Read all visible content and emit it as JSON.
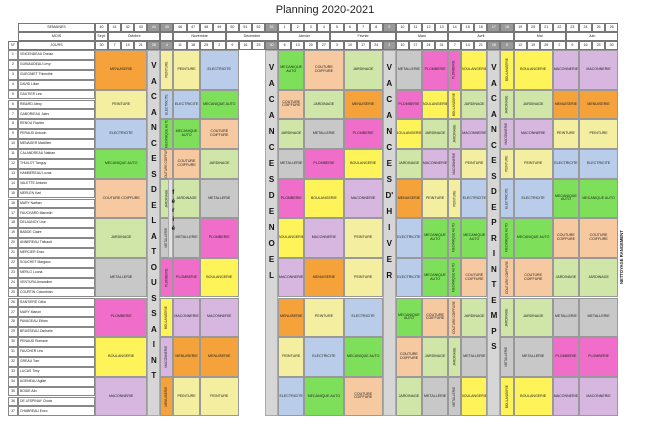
{
  "title": "Planning 2020-2021",
  "header": {
    "semaines_label": "SEMAINES",
    "mois_label": "MOIS",
    "jours_label": "JOURS",
    "num_label": "N°",
    "weeks": [
      "40",
      "41",
      "42",
      "43",
      "44",
      "45",
      "46",
      "47",
      "48",
      "49",
      "50",
      "51",
      "52",
      "53",
      "1",
      "2",
      "3",
      "4",
      "5",
      "6",
      "7",
      "8",
      "9",
      "10",
      "11",
      "12",
      "13",
      "14",
      "15",
      "16",
      "17",
      "18",
      "19",
      "20",
      "21",
      "22",
      "23",
      "24",
      "25",
      "26"
    ],
    "months": [
      {
        "label": "Sept.",
        "span": 1
      },
      {
        "label": "Octobre",
        "span": 4
      },
      {
        "label": "",
        "span": 1
      },
      {
        "label": "Novembre",
        "span": 4
      },
      {
        "label": "Décembre",
        "span": 4
      },
      {
        "label": "Janvier",
        "span": 4
      },
      {
        "label": "Février",
        "span": 5
      },
      {
        "label": "Mars",
        "span": 4
      },
      {
        "label": "Avril",
        "span": 5
      },
      {
        "label": "Mai",
        "span": 4
      },
      {
        "label": "Juin",
        "span": 4
      }
    ],
    "days": [
      "30",
      "7",
      "14",
      "21",
      "28",
      "4",
      "11",
      "18",
      "25",
      "2",
      "9",
      "16",
      "23",
      "30",
      "6",
      "13",
      "20",
      "27",
      "3",
      "10",
      "17",
      "24",
      "3",
      "10",
      "17",
      "24",
      "31",
      "7",
      "14",
      "21",
      "28",
      "5",
      "12",
      "19",
      "26",
      "2",
      "9",
      "16",
      "23",
      "30"
    ]
  },
  "students": [
    "VINCENDEAU Dorian",
    "GUINAUDEAU Lévy",
    "GUEGNIET Thimothé",
    "DAVID Lilian",
    "GAUTIER Léa",
    "RIBARD Alexy",
    "GABORIEAU Jules",
    "RENOU Flavien",
    "PERAUD Antonin",
    "MENAGER Maxillien",
    "CALANDREAU Nathan",
    "THUILOT Tanguy",
    "HAMBEREAU Lucas",
    "VALETTE Antonin",
    "MERLEN Karl",
    "MARY Nathan",
    "FAUCHARD Marcelin",
    "DELAUNOY Lise",
    "BABOE Claire",
    "ANNEREAU Thibault",
    "MERCIER Enzo",
    "SOUCHET Margaux",
    "MERLO Louna",
    "VENTURA Amandine",
    "COURTIN Colombian",
    "RANTIERE Célia",
    "MARY Manon",
    "PAVAGEAU Ethan",
    "BRUSSEAU Zacharie",
    "PENAUD Romane",
    "FAUCHER Léa",
    "GREAU Tom",
    "LUCAS Timy",
    "AGENEAU Agläé",
    "BOIDE Alix",
    "DE LESPINAY Clovis",
    "CHABREAU Enzo"
  ],
  "vacations": {
    "toussaint": [
      "V",
      "A",
      "C",
      "A",
      "N",
      "C",
      "E",
      "S",
      "D",
      "E",
      "L",
      "A",
      "T",
      "O",
      "U",
      "S",
      "S",
      "A",
      "I",
      "N",
      "T"
    ],
    "noel": [
      "V",
      "A",
      "C",
      "A",
      "N",
      "C",
      "E",
      "S",
      "D",
      "E",
      "N",
      "O",
      "E",
      "L"
    ],
    "hiver": [
      "V",
      "A",
      "C",
      "A",
      "N",
      "C",
      "E",
      "S",
      "D'",
      "H",
      "I",
      "V",
      "E",
      "R"
    ],
    "printemps": [
      "V",
      "A",
      "C",
      "A",
      "N",
      "C",
      "E",
      "S",
      "D",
      "E",
      "P",
      "R",
      "I",
      "N",
      "T",
      "E",
      "M",
      "P",
      "S"
    ],
    "ferie": [
      "f",
      "é",
      "r",
      "i",
      "é"
    ]
  },
  "side_label": "NETTOYAGE RANGEMENT",
  "labels": {
    "menuiserie": "MENUISERIE",
    "peinture": "PEINTURE",
    "electricite": "ELECTRICITE",
    "meca": "MECANIQUE AUTO",
    "couture": "COUTURE COIFFURE",
    "jardinage": "JARDINAGE",
    "metallerie": "METALLERIE",
    "plomberie": "PLOMBERIE",
    "boulangerie": "BOULANGERIE",
    "maconnerie": "MACONNERIE",
    "couture_short": "COUTURE COIFFURE"
  },
  "colors": {
    "menuiserie": "#f5a23a",
    "peinture": "#f3eea0",
    "electricite": "#b9cdea",
    "meca": "#7ee05a",
    "couture": "#f7c9a0",
    "jardinage": "#cfe6a8",
    "metallerie": "#c8c8c8",
    "plomberie": "#f06ec9",
    "boulangerie": "#fff35a",
    "maconnerie": "#d7b7e0"
  }
}
